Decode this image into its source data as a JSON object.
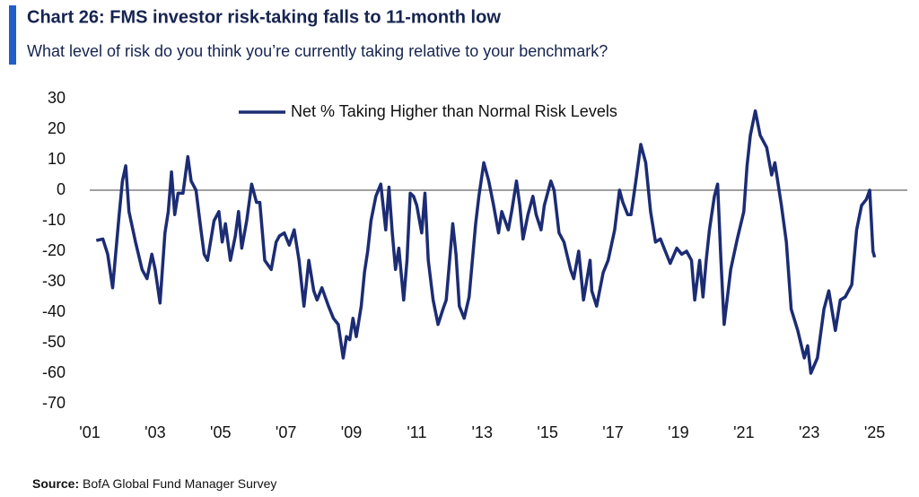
{
  "chart_data": {
    "type": "line",
    "title": "Chart 26: FMS investor risk-taking falls to 11-month low",
    "subtitle": "What level of risk do you think you’re currently taking relative to your benchmark?",
    "source_label": "Source:",
    "source": "BofA Global Fund Manager Survey",
    "xlim": [
      2001,
      2026
    ],
    "xticks": [
      {
        "value": 2001,
        "label": "'01"
      },
      {
        "value": 2003,
        "label": "'03"
      },
      {
        "value": 2005,
        "label": "'05"
      },
      {
        "value": 2007,
        "label": "'07"
      },
      {
        "value": 2009,
        "label": "'09"
      },
      {
        "value": 2011,
        "label": "'11"
      },
      {
        "value": 2013,
        "label": "'13"
      },
      {
        "value": 2015,
        "label": "'15"
      },
      {
        "value": 2017,
        "label": "'17"
      },
      {
        "value": 2019,
        "label": "'19"
      },
      {
        "value": 2021,
        "label": "'21"
      },
      {
        "value": 2023,
        "label": "'23"
      },
      {
        "value": 2025,
        "label": "'25"
      }
    ],
    "ylim": [
      -70,
      30
    ],
    "yticks": [
      -70,
      -60,
      -50,
      -40,
      -30,
      -20,
      -10,
      0,
      10,
      20,
      30
    ],
    "zero_line": true,
    "grid": false,
    "legend": "top",
    "x": [
      2001.2,
      2001.4,
      2001.55,
      2001.7,
      2001.9,
      2002.0,
      2002.1,
      2002.2,
      2002.4,
      2002.6,
      2002.75,
      2002.9,
      2003.0,
      2003.15,
      2003.3,
      2003.4,
      2003.5,
      2003.6,
      2003.7,
      2003.85,
      2004.0,
      2004.1,
      2004.25,
      2004.4,
      2004.5,
      2004.6,
      2004.8,
      2004.95,
      2005.05,
      2005.15,
      2005.3,
      2005.45,
      2005.55,
      2005.65,
      2005.8,
      2005.95,
      2006.1,
      2006.2,
      2006.35,
      2006.55,
      2006.7,
      2006.8,
      2006.95,
      2007.1,
      2007.25,
      2007.4,
      2007.55,
      2007.7,
      2007.85,
      2007.95,
      2008.1,
      2008.3,
      2008.45,
      2008.6,
      2008.75,
      2008.85,
      2008.95,
      2009.05,
      2009.15,
      2009.3,
      2009.4,
      2009.5,
      2009.6,
      2009.75,
      2009.9,
      2010.05,
      2010.15,
      2010.25,
      2010.35,
      2010.45,
      2010.6,
      2010.7,
      2010.8,
      2010.9,
      2011.0,
      2011.15,
      2011.25,
      2011.35,
      2011.5,
      2011.65,
      2011.8,
      2011.9,
      2012.1,
      2012.2,
      2012.3,
      2012.45,
      2012.6,
      2012.8,
      2012.9,
      2013.05,
      2013.2,
      2013.35,
      2013.5,
      2013.6,
      2013.8,
      2013.9,
      2014.05,
      2014.15,
      2014.25,
      2014.4,
      2014.55,
      2014.65,
      2014.8,
      2014.9,
      2015.1,
      2015.2,
      2015.35,
      2015.5,
      2015.7,
      2015.8,
      2015.95,
      2016.1,
      2016.3,
      2016.35,
      2016.5,
      2016.7,
      2016.85,
      2017.05,
      2017.2,
      2017.3,
      2017.45,
      2017.55,
      2017.7,
      2017.85,
      2018.0,
      2018.15,
      2018.3,
      2018.45,
      2018.6,
      2018.75,
      2018.95,
      2019.1,
      2019.25,
      2019.4,
      2019.5,
      2019.65,
      2019.75,
      2019.85,
      2019.95,
      2020.1,
      2020.2,
      2020.3,
      2020.4,
      2020.6,
      2020.8,
      2021.0,
      2021.1,
      2021.2,
      2021.35,
      2021.5,
      2021.7,
      2021.85,
      2021.95,
      2022.15,
      2022.3,
      2022.45,
      2022.65,
      2022.85,
      2022.95,
      2023.05,
      2023.25,
      2023.45,
      2023.6,
      2023.8,
      2023.95,
      2024.1,
      2024.3,
      2024.45,
      2024.6,
      2024.75,
      2024.85,
      2024.95,
      2025.0
    ],
    "series": [
      {
        "name": "Net % Taking Higher than Normal Risk Levels",
        "color": "#1c2c74",
        "values": [
          -16.5,
          -16,
          -21,
          -32,
          -8,
          3,
          8,
          -7,
          -17,
          -26,
          -29,
          -21,
          -26,
          -37,
          -14,
          -7,
          6,
          -8,
          -1,
          -1,
          11,
          3,
          0,
          -13,
          -21,
          -23,
          -10,
          -7,
          -17,
          -11,
          -23,
          -15,
          -7,
          -19,
          -10,
          2,
          -4,
          -4,
          -23,
          -26,
          -17,
          -15,
          -14,
          -18,
          -13,
          -23,
          -38,
          -23,
          -33,
          -36,
          -32,
          -38,
          -42,
          -44,
          -55,
          -48,
          -49,
          -42,
          -48,
          -38,
          -27,
          -20,
          -10,
          -2,
          2,
          -13,
          1,
          -14,
          -26,
          -19,
          -36,
          -23,
          -1,
          -2,
          -5,
          -14,
          -1,
          -23,
          -36,
          -44,
          -39,
          -36,
          -11,
          -21,
          -38,
          -42,
          -35,
          -11,
          -2,
          9,
          3,
          -5,
          -14,
          -7,
          -13,
          -7,
          3,
          -5,
          -16,
          -8,
          -2,
          -8,
          -13,
          -5,
          3,
          0,
          -14,
          -17,
          -26,
          -29,
          -20,
          -36,
          -23,
          -33,
          -38,
          -27,
          -23,
          -13,
          0,
          -4,
          -8,
          -8,
          3,
          15,
          9,
          -7,
          -17,
          -16,
          -20,
          -24,
          -19,
          -21,
          -20,
          -23,
          -36,
          -23,
          -35,
          -23,
          -13,
          -2,
          2,
          -23,
          -44,
          -26,
          -16,
          -7,
          8,
          18,
          26,
          18,
          14,
          5,
          9,
          -5,
          -17,
          -39,
          -46,
          -55,
          -51,
          -60,
          -55,
          -39,
          -33,
          -46,
          -36,
          -35,
          -31,
          -13,
          -5,
          -3,
          0,
          -20,
          -22
        ]
      }
    ]
  }
}
